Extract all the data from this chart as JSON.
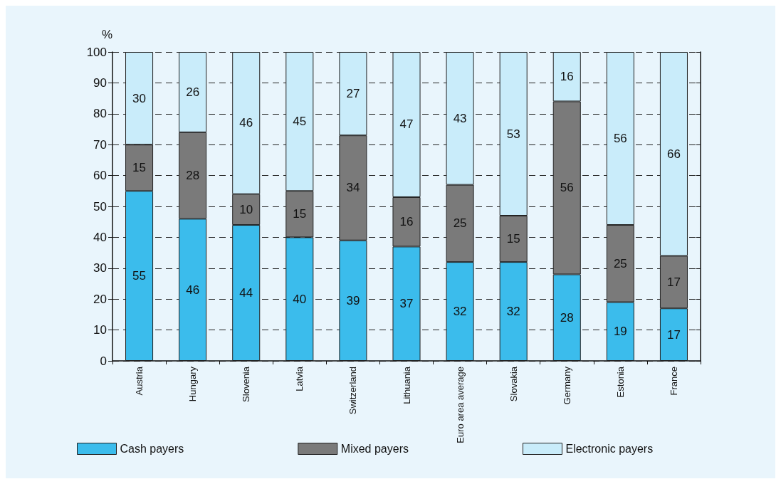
{
  "chart_data": {
    "type": "bar",
    "stacked": true,
    "ylabel": "%",
    "categories": [
      "Austria",
      "Hungary",
      "Slovenia",
      "Latvia",
      "Switzerland",
      "Lithuania",
      "Euro area average",
      "Slovakia",
      "Germany",
      "Estonia",
      "France"
    ],
    "series": [
      {
        "name": "Cash payers",
        "color": "#3bbcec",
        "values": [
          55,
          46,
          44,
          40,
          39,
          37,
          32,
          32,
          28,
          19,
          17
        ]
      },
      {
        "name": "Mixed payers",
        "color": "#7a7a7a",
        "values": [
          15,
          28,
          10,
          15,
          34,
          16,
          25,
          15,
          56,
          25,
          17
        ]
      },
      {
        "name": "Electronic payers",
        "color": "#c9ecfa",
        "values": [
          30,
          26,
          46,
          45,
          27,
          47,
          43,
          53,
          16,
          56,
          66
        ]
      }
    ],
    "ylim": [
      0,
      100
    ],
    "yticks": [
      0,
      10,
      20,
      30,
      40,
      50,
      60,
      70,
      80,
      90,
      100
    ],
    "grid": "y",
    "legend": "bottom left",
    "data_labels": true
  }
}
